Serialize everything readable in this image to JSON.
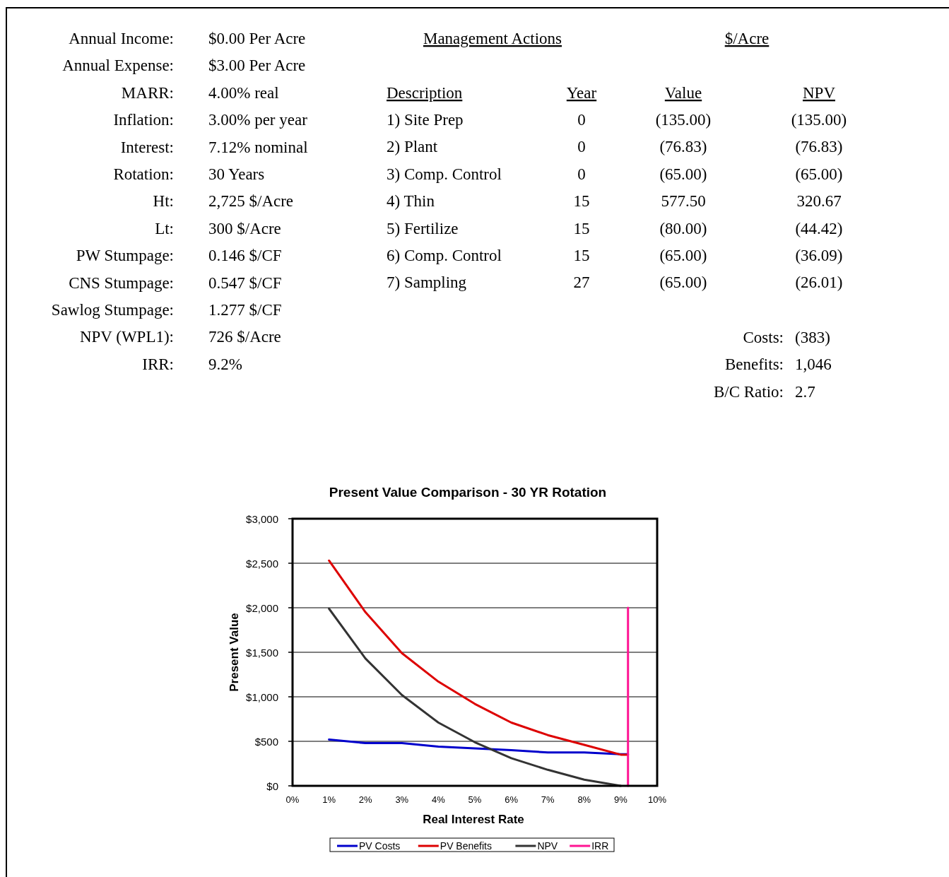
{
  "chart_data": [
    {
      "type": "other",
      "annotations": [
        "Annual Income:",
        "$0.00 Per Acre",
        "Annual Expense:",
        "$3.00 Per Acre",
        "MARR:",
        "4.00% real",
        "Inflation:",
        "3.00% per year",
        "Interest:",
        "7.12% nominal",
        "Rotation:",
        "30 Years",
        "Ht:",
        "2,725 $/Acre",
        "Lt:",
        "300 $/Acre",
        "PW Stumpage:",
        "0.146 $/CF",
        "CNS Stumpage:",
        "0.547 $/CF",
        "Sawlog Stumpage:",
        "1.277 $/CF",
        "NPV (WPL1):",
        "726 $/Acre",
        "IRR:",
        "9.2%",
        "Management Actions",
        "$/Acre",
        "Description",
        "Year",
        "Value",
        "NPV",
        "1) Site Prep",
        "0",
        "(135.00)",
        "(135.00)",
        "2) Plant",
        "0",
        "(76.83)",
        "(76.83)",
        "3) Comp. Control",
        "0",
        "(65.00)",
        "(65.00)",
        "4) Thin",
        "15",
        "577.50",
        "320.67",
        "5) Fertilize",
        "15",
        "(80.00)",
        "(44.42)",
        "6) Comp. Control",
        "15",
        "(65.00)",
        "(36.09)",
        "7) Sampling",
        "27",
        "(65.00)",
        "(26.01)",
        "Costs:",
        "(383)",
        "Benefits:",
        "1,046",
        "B/C Ratio:",
        "2.7"
      ]
    },
    {
      "type": "line",
      "title": "Present Value Comparison - 30 YR Rotation",
      "xlabel": "Real Interest Rate",
      "ylabel": "Present Value",
      "xlim": [
        0,
        10
      ],
      "xticks": [
        {
          "value": 0,
          "label": "0%"
        },
        {
          "value": 1,
          "label": "1%"
        },
        {
          "value": 2,
          "label": "2%"
        },
        {
          "value": 3,
          "label": "3%"
        },
        {
          "value": 4,
          "label": "4%"
        },
        {
          "value": 5,
          "label": "5%"
        },
        {
          "value": 6,
          "label": "6%"
        },
        {
          "value": 7,
          "label": "7%"
        },
        {
          "value": 8,
          "label": "8%"
        },
        {
          "value": 9,
          "label": "9%"
        },
        {
          "value": 10,
          "label": "10%"
        }
      ],
      "ylim": [
        0,
        3000
      ],
      "yticks": [
        {
          "value": 0,
          "label": "$0"
        },
        {
          "value": 500,
          "label": "$500"
        },
        {
          "value": 1000,
          "label": "$1,000"
        },
        {
          "value": 1500,
          "label": "$1,500"
        },
        {
          "value": 2000,
          "label": "$2,000"
        },
        {
          "value": 2500,
          "label": "$2,500"
        },
        {
          "value": 3000,
          "label": "$3,000"
        }
      ],
      "grid": "y",
      "legend": "bottom",
      "marker": "none",
      "line_style": "solid",
      "series": [
        {
          "name": "PV Costs",
          "color": "#0000cc",
          "x": [
            1,
            2,
            3,
            4,
            5,
            6,
            7,
            8,
            9,
            9.2
          ],
          "values": [
            520,
            480,
            480,
            440,
            420,
            400,
            375,
            375,
            355,
            355
          ]
        },
        {
          "name": "PV Benefits",
          "color": "#dd0000",
          "x": [
            1,
            2,
            3,
            4,
            5,
            6,
            7,
            8,
            9,
            9.2
          ],
          "values": [
            2530,
            1950,
            1490,
            1170,
            920,
            710,
            570,
            460,
            350,
            350
          ]
        },
        {
          "name": "NPV",
          "color": "#333333",
          "x": [
            1,
            2,
            3,
            4,
            5,
            6,
            7,
            8,
            9
          ],
          "values": [
            1990,
            1430,
            1020,
            710,
            490,
            310,
            180,
            70,
            0
          ]
        },
        {
          "name": "IRR",
          "color": "#ff1493",
          "x": [
            9.2,
            9.2
          ],
          "values": [
            0,
            2000
          ]
        }
      ]
    }
  ]
}
